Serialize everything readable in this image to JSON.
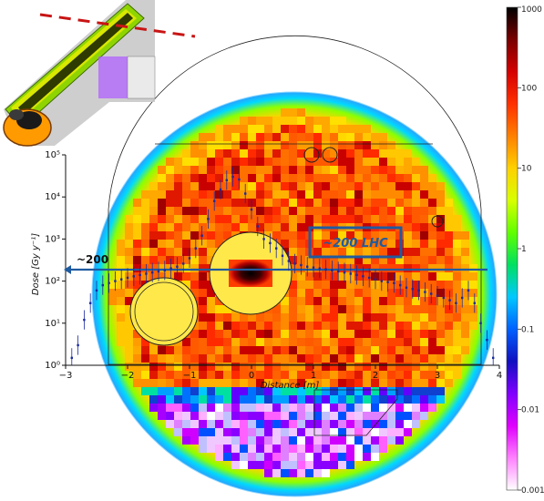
{
  "chart_data": {
    "type": "scatter",
    "ylabel": "Dose [Gy y⁻¹]",
    "xlabel": "Distance [m]",
    "x_ticks": [
      "−3",
      "−2",
      "−1",
      "0",
      "1",
      "2",
      "3",
      "4"
    ],
    "y_ticks": [
      "10⁰",
      "10¹",
      "10²",
      "10³",
      "10⁴",
      "10⁵"
    ],
    "xlim": [
      -3,
      4
    ],
    "ylim_log10": [
      0,
      5
    ],
    "annotation_box": "~200 LHC",
    "annotation_left": "~200",
    "reference_level": 200,
    "colorbar": {
      "scale": "log",
      "tick_labels": [
        "1000",
        "100",
        "10",
        "1",
        "0.1",
        "0.01",
        "0.001"
      ],
      "colors": [
        "#000000",
        "#7a0000",
        "#d40000",
        "#ff3000",
        "#ff8000",
        "#ffd000",
        "#d8ff00",
        "#60ff00",
        "#00e060",
        "#00c8ff",
        "#0060ff",
        "#1010c0",
        "#8000ff",
        "#e000ff",
        "#ff80ff",
        "#ffffff"
      ]
    },
    "points_x": [
      -2.9,
      -2.8,
      -2.7,
      -2.6,
      -2.5,
      -2.4,
      -2.3,
      -2.2,
      -2.1,
      -2.0,
      -1.9,
      -1.8,
      -1.7,
      -1.6,
      -1.5,
      -1.4,
      -1.3,
      -1.2,
      -1.1,
      -1.0,
      -0.9,
      -0.8,
      -0.7,
      -0.6,
      -0.5,
      -0.4,
      -0.3,
      -0.2,
      -0.1,
      0.0,
      0.1,
      0.2,
      0.3,
      0.4,
      0.5,
      0.6,
      0.7,
      0.8,
      0.9,
      1.0,
      1.1,
      1.2,
      1.3,
      1.4,
      1.5,
      1.6,
      1.7,
      1.8,
      1.9,
      2.0,
      2.1,
      2.2,
      2.3,
      2.4,
      2.5,
      2.6,
      2.7,
      2.8,
      2.9,
      3.0,
      3.1,
      3.2,
      3.3,
      3.4,
      3.5,
      3.6,
      3.7,
      3.8,
      3.9
    ],
    "points_y": [
      1.5,
      3,
      12,
      30,
      60,
      80,
      90,
      100,
      110,
      120,
      130,
      140,
      150,
      160,
      170,
      180,
      200,
      220,
      260,
      350,
      600,
      1200,
      3000,
      8000,
      15000,
      25000,
      30000,
      26000,
      12000,
      5000,
      2000,
      1000,
      800,
      600,
      400,
      300,
      260,
      240,
      220,
      210,
      200,
      190,
      180,
      170,
      160,
      150,
      140,
      130,
      120,
      110,
      100,
      95,
      90,
      80,
      70,
      65,
      60,
      55,
      50,
      45,
      40,
      35,
      30,
      40,
      60,
      30,
      10,
      4,
      1.5
    ]
  }
}
